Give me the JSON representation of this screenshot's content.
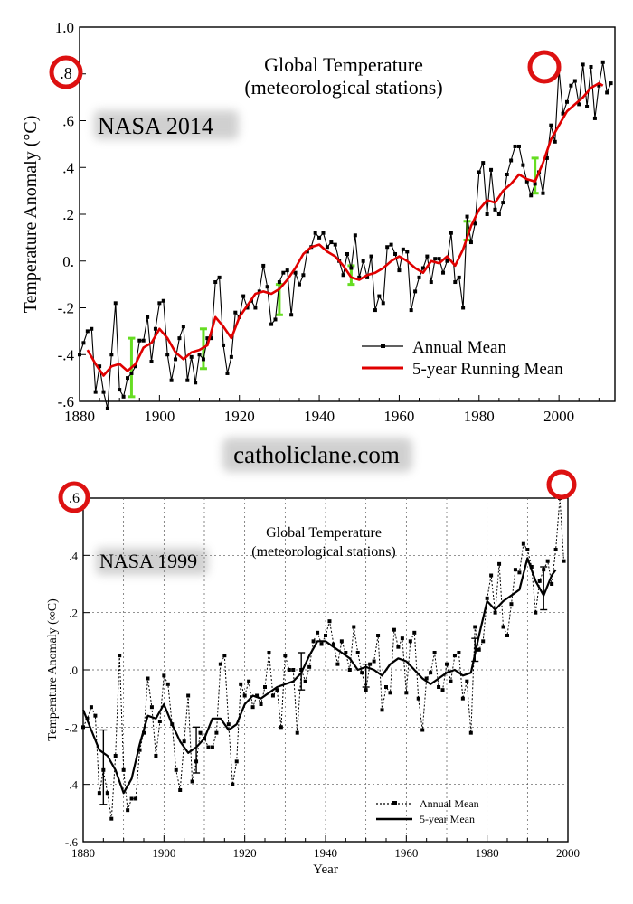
{
  "watermark": "catholiclane.com",
  "chart_data": [
    {
      "type": "line",
      "title": "Global Temperature",
      "subtitle": "(meteorological stations)",
      "badge": "NASA 2014",
      "highlight_label": ".8",
      "xlabel": "",
      "ylabel": "Temperature Anomaly (°C)",
      "xlim": [
        1880,
        2014
      ],
      "ylim": [
        -0.6,
        1.0
      ],
      "xticks": [
        1880,
        1900,
        1920,
        1940,
        1960,
        1980,
        2000
      ],
      "yticks": [
        -0.6,
        -0.4,
        -0.2,
        0.0,
        0.2,
        0.4,
        0.6,
        0.8,
        1.0
      ],
      "ytick_labels": [
        "-.6",
        "-.4",
        "-.2",
        "0.",
        ".2",
        ".4",
        ".6",
        "",
        "1.0"
      ],
      "grid": false,
      "legend_position": "bottom-right",
      "colors": {
        "annual": "#000000",
        "running": "#e00000",
        "error": "#66dd22",
        "highlight": "#dd1111"
      },
      "series": [
        {
          "name": "Annual Mean",
          "x": [
            1880,
            1881,
            1882,
            1883,
            1884,
            1885,
            1886,
            1887,
            1888,
            1889,
            1890,
            1891,
            1892,
            1893,
            1894,
            1895,
            1896,
            1897,
            1898,
            1899,
            1900,
            1901,
            1902,
            1903,
            1904,
            1905,
            1906,
            1907,
            1908,
            1909,
            1910,
            1911,
            1912,
            1913,
            1914,
            1915,
            1916,
            1917,
            1918,
            1919,
            1920,
            1921,
            1922,
            1923,
            1924,
            1925,
            1926,
            1927,
            1928,
            1929,
            1930,
            1931,
            1932,
            1933,
            1934,
            1935,
            1936,
            1937,
            1938,
            1939,
            1940,
            1941,
            1942,
            1943,
            1944,
            1945,
            1946,
            1947,
            1948,
            1949,
            1950,
            1951,
            1952,
            1953,
            1954,
            1955,
            1956,
            1957,
            1958,
            1959,
            1960,
            1961,
            1962,
            1963,
            1964,
            1965,
            1966,
            1967,
            1968,
            1969,
            1970,
            1971,
            1972,
            1973,
            1974,
            1975,
            1976,
            1977,
            1978,
            1979,
            1980,
            1981,
            1982,
            1983,
            1984,
            1985,
            1986,
            1987,
            1988,
            1989,
            1990,
            1991,
            1992,
            1993,
            1994,
            1995,
            1996,
            1997,
            1998,
            1999,
            2000,
            2001,
            2002,
            2003,
            2004,
            2005,
            2006,
            2007,
            2008,
            2009,
            2010,
            2011,
            2012,
            2013
          ],
          "values": [
            -0.4,
            -0.35,
            -0.3,
            -0.29,
            -0.56,
            -0.45,
            -0.56,
            -0.63,
            -0.4,
            -0.18,
            -0.55,
            -0.58,
            -0.5,
            -0.48,
            -0.45,
            -0.34,
            -0.34,
            -0.24,
            -0.43,
            -0.29,
            -0.18,
            -0.17,
            -0.4,
            -0.51,
            -0.42,
            -0.33,
            -0.28,
            -0.51,
            -0.41,
            -0.52,
            -0.4,
            -0.42,
            -0.33,
            -0.33,
            -0.09,
            -0.07,
            -0.36,
            -0.48,
            -0.41,
            -0.22,
            -0.24,
            -0.15,
            -0.2,
            -0.17,
            -0.2,
            -0.13,
            -0.02,
            -0.11,
            -0.27,
            -0.25,
            -0.09,
            -0.05,
            -0.04,
            -0.23,
            -0.05,
            -0.1,
            -0.06,
            0.04,
            0.06,
            0.12,
            0.1,
            0.12,
            0.06,
            0.08,
            0.07,
            0.0,
            -0.06,
            0.03,
            -0.03,
            0.11,
            -0.07,
            0.0,
            -0.07,
            0.02,
            -0.21,
            -0.15,
            -0.18,
            0.06,
            0.07,
            0.03,
            -0.04,
            0.05,
            0.04,
            -0.21,
            -0.13,
            -0.07,
            -0.03,
            0.02,
            -0.09,
            0.01,
            0.01,
            -0.05,
            0.0,
            0.12,
            -0.09,
            -0.07,
            -0.2,
            0.19,
            0.08,
            0.16,
            0.38,
            0.42,
            0.2,
            0.39,
            0.22,
            0.2,
            0.25,
            0.37,
            0.43,
            0.49,
            0.49,
            0.41,
            0.34,
            0.28,
            0.33,
            0.38,
            0.29,
            0.44,
            0.58,
            0.51,
            0.82,
            0.63,
            0.68,
            0.75,
            0.77,
            0.67,
            0.84,
            0.66,
            0.83,
            0.61,
            0.75,
            0.85,
            0.72,
            0.76
          ]
        },
        {
          "name": "5-year Running Mean",
          "x": [
            1882,
            1884,
            1886,
            1888,
            1890,
            1892,
            1894,
            1896,
            1898,
            1900,
            1902,
            1904,
            1906,
            1908,
            1910,
            1912,
            1914,
            1916,
            1918,
            1920,
            1922,
            1924,
            1926,
            1928,
            1930,
            1932,
            1934,
            1936,
            1938,
            1940,
            1942,
            1944,
            1946,
            1948,
            1950,
            1952,
            1954,
            1956,
            1958,
            1960,
            1962,
            1964,
            1966,
            1968,
            1970,
            1972,
            1974,
            1976,
            1978,
            1980,
            1982,
            1984,
            1986,
            1988,
            1990,
            1992,
            1994,
            1996,
            1998,
            2000,
            2002,
            2004,
            2006,
            2008,
            2010,
            2011
          ],
          "values": [
            -0.38,
            -0.44,
            -0.49,
            -0.45,
            -0.44,
            -0.47,
            -0.44,
            -0.37,
            -0.35,
            -0.29,
            -0.33,
            -0.39,
            -0.42,
            -0.39,
            -0.38,
            -0.36,
            -0.24,
            -0.28,
            -0.33,
            -0.24,
            -0.19,
            -0.14,
            -0.13,
            -0.14,
            -0.12,
            -0.08,
            -0.03,
            0.03,
            0.06,
            0.07,
            0.04,
            0.02,
            -0.02,
            -0.07,
            -0.08,
            -0.06,
            -0.05,
            -0.03,
            0.0,
            0.02,
            0.0,
            -0.03,
            -0.05,
            0.0,
            -0.01,
            0.02,
            -0.02,
            0.05,
            0.15,
            0.22,
            0.26,
            0.25,
            0.3,
            0.33,
            0.37,
            0.35,
            0.34,
            0.42,
            0.52,
            0.58,
            0.64,
            0.67,
            0.7,
            0.74,
            0.76,
            0.75
          ]
        }
      ],
      "error_bars": [
        {
          "x": 1893,
          "low": -0.58,
          "high": -0.33
        },
        {
          "x": 1911,
          "low": -0.46,
          "high": -0.29
        },
        {
          "x": 1930,
          "low": -0.23,
          "high": -0.1
        },
        {
          "x": 1948,
          "low": -0.1,
          "high": -0.02
        },
        {
          "x": 1977,
          "low": 0.09,
          "high": 0.17
        },
        {
          "x": 1994,
          "low": 0.29,
          "high": 0.44
        }
      ]
    },
    {
      "type": "line",
      "title": "Global Temperature",
      "subtitle": "(meteorological stations)",
      "badge": "NASA 1999",
      "highlight_label": ".6",
      "xlabel": "Year",
      "ylabel": "Temperature Anomaly (∞C)",
      "xlim": [
        1880,
        2000
      ],
      "ylim": [
        -0.6,
        0.6
      ],
      "xticks": [
        1880,
        1900,
        1920,
        1940,
        1960,
        1980,
        2000
      ],
      "yticks": [
        -0.6,
        -0.4,
        -0.2,
        0.0,
        0.2,
        0.4
      ],
      "ytick_labels": [
        "-.6",
        "-.4",
        "-.2",
        ".0",
        ".2",
        ".4"
      ],
      "grid": true,
      "legend_position": "bottom-right",
      "colors": {
        "annual": "#000000",
        "running": "#000000",
        "highlight": "#dd1111"
      },
      "series": [
        {
          "name": "Annual Mean",
          "x": [
            1880,
            1881,
            1882,
            1883,
            1884,
            1885,
            1886,
            1887,
            1888,
            1889,
            1890,
            1891,
            1892,
            1893,
            1894,
            1895,
            1896,
            1897,
            1898,
            1899,
            1900,
            1901,
            1902,
            1903,
            1904,
            1905,
            1906,
            1907,
            1908,
            1909,
            1910,
            1911,
            1912,
            1913,
            1914,
            1915,
            1916,
            1917,
            1918,
            1919,
            1920,
            1921,
            1922,
            1923,
            1924,
            1925,
            1926,
            1927,
            1928,
            1929,
            1930,
            1931,
            1932,
            1933,
            1934,
            1935,
            1936,
            1937,
            1938,
            1939,
            1940,
            1941,
            1942,
            1943,
            1944,
            1945,
            1946,
            1947,
            1948,
            1949,
            1950,
            1951,
            1952,
            1953,
            1954,
            1955,
            1956,
            1957,
            1958,
            1959,
            1960,
            1961,
            1962,
            1963,
            1964,
            1965,
            1966,
            1967,
            1968,
            1969,
            1970,
            1971,
            1972,
            1973,
            1974,
            1975,
            1976,
            1977,
            1978,
            1979,
            1980,
            1981,
            1982,
            1983,
            1984,
            1985,
            1986,
            1987,
            1988,
            1989,
            1990,
            1991,
            1992,
            1993,
            1994,
            1995,
            1996,
            1997,
            1998,
            1999
          ],
          "values": [
            -0.2,
            -0.17,
            -0.13,
            -0.16,
            -0.43,
            -0.35,
            -0.43,
            -0.52,
            -0.3,
            0.05,
            -0.35,
            -0.49,
            -0.45,
            -0.45,
            -0.28,
            -0.22,
            -0.03,
            -0.13,
            -0.3,
            -0.18,
            -0.02,
            -0.05,
            -0.19,
            -0.35,
            -0.42,
            -0.25,
            -0.09,
            -0.39,
            -0.32,
            -0.22,
            -0.24,
            -0.27,
            -0.27,
            -0.22,
            0.02,
            0.05,
            -0.19,
            -0.4,
            -0.32,
            -0.05,
            -0.09,
            -0.04,
            -0.13,
            -0.09,
            -0.12,
            -0.06,
            0.06,
            -0.09,
            -0.07,
            -0.2,
            0.05,
            0.0,
            0.0,
            -0.22,
            0.0,
            -0.04,
            0.01,
            0.1,
            0.13,
            0.09,
            0.12,
            0.17,
            0.09,
            0.02,
            0.1,
            0.06,
            0.0,
            0.15,
            0.06,
            -0.01,
            -0.07,
            0.02,
            0.03,
            0.12,
            -0.14,
            -0.06,
            -0.08,
            0.14,
            0.08,
            0.11,
            -0.08,
            0.1,
            0.13,
            -0.1,
            -0.21,
            -0.03,
            -0.01,
            0.06,
            -0.06,
            -0.07,
            0.02,
            -0.04,
            0.05,
            0.06,
            -0.1,
            -0.04,
            -0.22,
            0.15,
            0.07,
            0.1,
            0.25,
            0.33,
            0.2,
            0.37,
            0.15,
            0.12,
            0.23,
            0.35,
            0.34,
            0.44,
            0.42,
            0.36,
            0.2,
            0.31,
            0.35,
            0.38,
            0.3,
            0.42,
            0.6,
            0.38
          ]
        },
        {
          "name": "5-year Mean",
          "x": [
            1880,
            1882,
            1884,
            1886,
            1888,
            1890,
            1892,
            1894,
            1896,
            1898,
            1900,
            1902,
            1904,
            1906,
            1908,
            1910,
            1912,
            1914,
            1916,
            1918,
            1920,
            1922,
            1924,
            1926,
            1928,
            1930,
            1932,
            1934,
            1936,
            1938,
            1940,
            1942,
            1944,
            1946,
            1948,
            1950,
            1952,
            1954,
            1956,
            1958,
            1960,
            1962,
            1964,
            1966,
            1968,
            1970,
            1972,
            1974,
            1976,
            1978,
            1980,
            1982,
            1984,
            1986,
            1988,
            1990,
            1992,
            1994,
            1996,
            1997
          ],
          "values": [
            -0.14,
            -0.21,
            -0.28,
            -0.3,
            -0.35,
            -0.43,
            -0.38,
            -0.26,
            -0.16,
            -0.17,
            -0.12,
            -0.19,
            -0.25,
            -0.29,
            -0.27,
            -0.24,
            -0.17,
            -0.17,
            -0.21,
            -0.19,
            -0.12,
            -0.09,
            -0.1,
            -0.08,
            -0.06,
            -0.05,
            -0.04,
            -0.01,
            0.05,
            0.1,
            0.1,
            0.08,
            0.06,
            0.04,
            0.0,
            0.01,
            0.0,
            -0.02,
            0.02,
            0.04,
            0.03,
            0.0,
            -0.03,
            -0.05,
            -0.03,
            -0.01,
            0.0,
            -0.02,
            -0.01,
            0.12,
            0.24,
            0.21,
            0.24,
            0.26,
            0.28,
            0.39,
            0.31,
            0.26,
            0.33,
            0.35
          ]
        }
      ],
      "error_bars": [
        {
          "x": 1885,
          "low": -0.47,
          "high": -0.21
        },
        {
          "x": 1908,
          "low": -0.36,
          "high": -0.2
        },
        {
          "x": 1934,
          "low": -0.07,
          "high": 0.06
        },
        {
          "x": 1950,
          "low": -0.06,
          "high": 0.02
        },
        {
          "x": 1977,
          "low": 0.03,
          "high": 0.11
        },
        {
          "x": 1994,
          "low": 0.21,
          "high": 0.36
        }
      ]
    }
  ]
}
